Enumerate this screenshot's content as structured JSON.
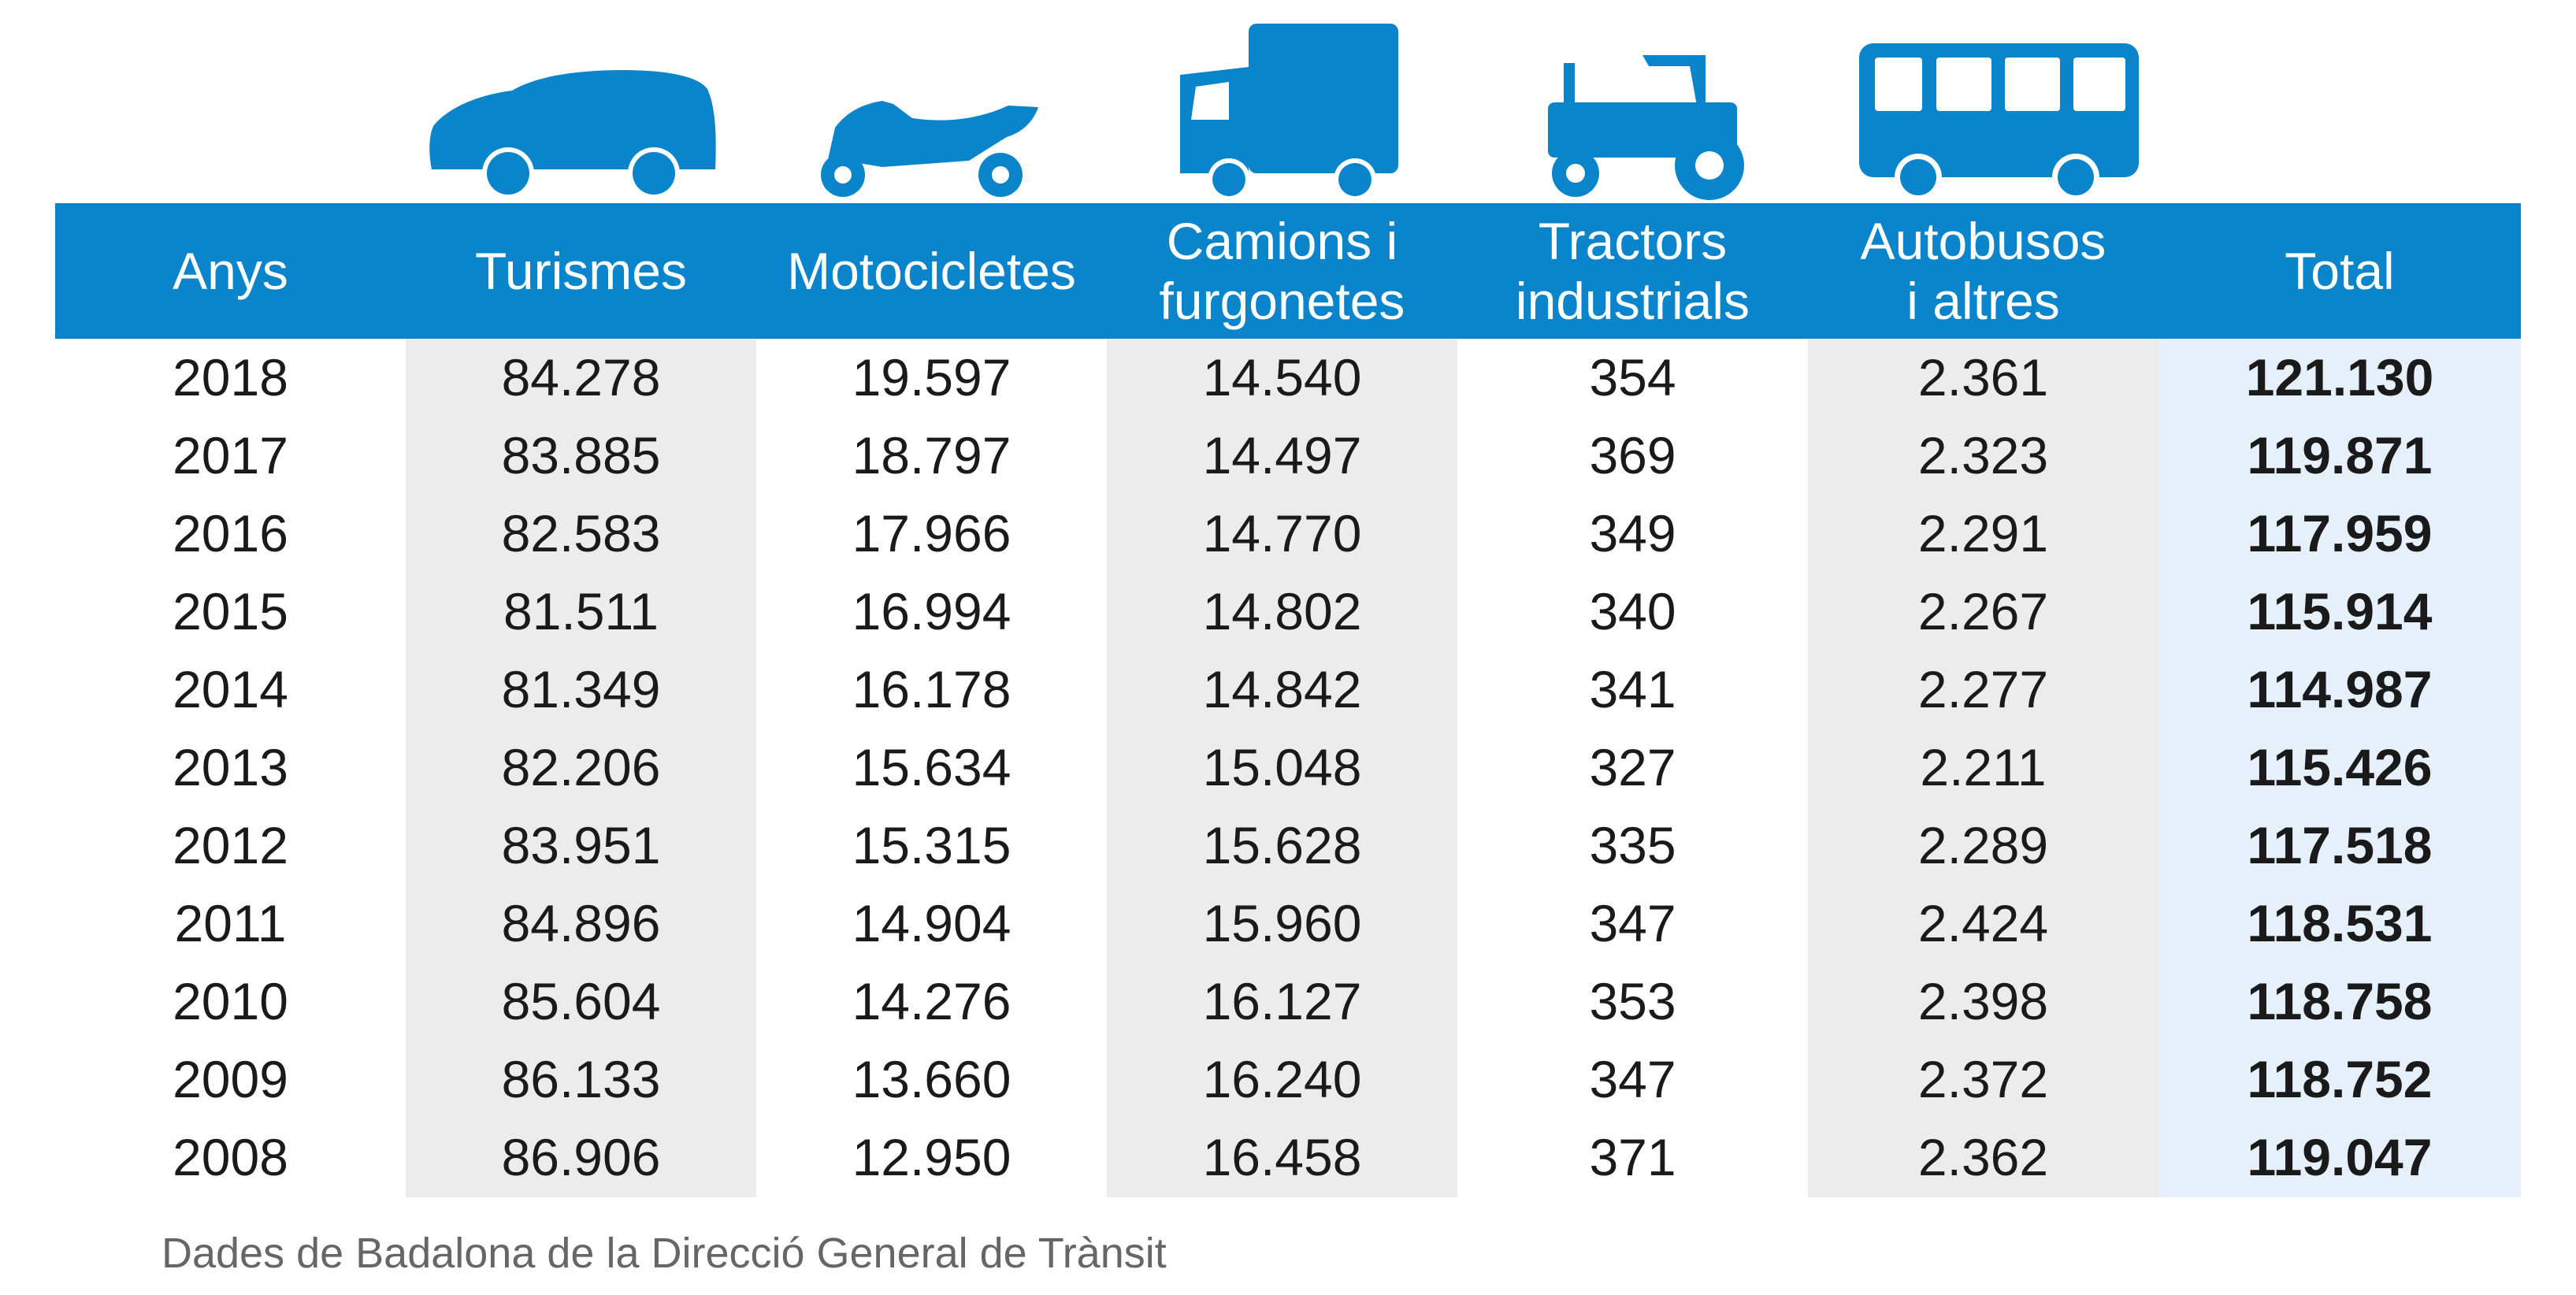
{
  "chart_data": {
    "type": "table",
    "columns": [
      {
        "key": "year",
        "label_lines": [
          "Anys"
        ],
        "icon": "none"
      },
      {
        "key": "cars",
        "label_lines": [
          "Turismes"
        ],
        "icon": "car-icon"
      },
      {
        "key": "motorcycles",
        "label_lines": [
          "Motocicletes"
        ],
        "icon": "motorcycle-icon"
      },
      {
        "key": "trucks_vans",
        "label_lines": [
          "Camions i",
          "furgonetes"
        ],
        "icon": "truck-icon"
      },
      {
        "key": "tractors",
        "label_lines": [
          "Tractors",
          "industrials"
        ],
        "icon": "tractor-icon"
      },
      {
        "key": "buses_other",
        "label_lines": [
          "Autobusos",
          "i altres"
        ],
        "icon": "bus-icon"
      },
      {
        "key": "total",
        "label_lines": [
          "Total"
        ],
        "icon": "none"
      }
    ],
    "rows": [
      [
        "2018",
        "84.278",
        "19.597",
        "14.540",
        "354",
        "2.361",
        "121.130"
      ],
      [
        "2017",
        "83.885",
        "18.797",
        "14.497",
        "369",
        "2.323",
        "119.871"
      ],
      [
        "2016",
        "82.583",
        "17.966",
        "14.770",
        "349",
        "2.291",
        "117.959"
      ],
      [
        "2015",
        "81.511",
        "16.994",
        "14.802",
        "340",
        "2.267",
        "115.914"
      ],
      [
        "2014",
        "81.349",
        "16.178",
        "14.842",
        "341",
        "2.277",
        "114.987"
      ],
      [
        "2013",
        "82.206",
        "15.634",
        "15.048",
        "327",
        "2.211",
        "115.426"
      ],
      [
        "2012",
        "83.951",
        "15.315",
        "15.628",
        "335",
        "2.289",
        "117.518"
      ],
      [
        "2011",
        "84.896",
        "14.904",
        "15.960",
        "347",
        "2.424",
        "118.531"
      ],
      [
        "2010",
        "85.604",
        "14.276",
        "16.127",
        "353",
        "2.398",
        "118.758"
      ],
      [
        "2009",
        "86.133",
        "13.660",
        "16.240",
        "347",
        "2.372",
        "118.752"
      ],
      [
        "2008",
        "86.906",
        "12.950",
        "16.458",
        "371",
        "2.362",
        "119.047"
      ]
    ],
    "source": "Dades de Badalona de la Direcció General de Trànsit"
  },
  "colors": {
    "header": "#0a85cc",
    "icon": "#0a85cc",
    "shade_grey": "#ececec",
    "shade_total": "#e6f0fa",
    "source_text": "#666666"
  }
}
